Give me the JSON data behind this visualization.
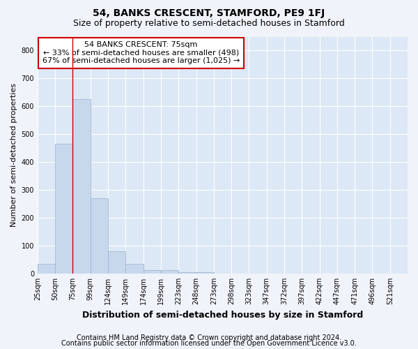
{
  "title": "54, BANKS CRESCENT, STAMFORD, PE9 1FJ",
  "subtitle": "Size of property relative to semi-detached houses in Stamford",
  "xlabel": "Distribution of semi-detached houses by size in Stamford",
  "ylabel": "Number of semi-detached properties",
  "categories": [
    "25sqm",
    "50sqm",
    "75sqm",
    "99sqm",
    "124sqm",
    "149sqm",
    "174sqm",
    "199sqm",
    "223sqm",
    "248sqm",
    "273sqm",
    "298sqm",
    "323sqm",
    "347sqm",
    "372sqm",
    "397sqm",
    "422sqm",
    "447sqm",
    "471sqm",
    "496sqm",
    "521sqm"
  ],
  "values": [
    35,
    465,
    625,
    270,
    80,
    35,
    13,
    12,
    5,
    5,
    0,
    0,
    0,
    0,
    0,
    0,
    0,
    0,
    0,
    0,
    0
  ],
  "bar_color": "#c8d8ec",
  "bar_edge_color": "#9ab0cc",
  "vline_color": "#cc0000",
  "annotation_text": "54 BANKS CRESCENT: 75sqm\n← 33% of semi-detached houses are smaller (498)\n67% of semi-detached houses are larger (1,025) →",
  "annotation_box_color": "#ffffff",
  "annotation_border_color": "#cc0000",
  "ylim": [
    0,
    850
  ],
  "yticks": [
    0,
    100,
    200,
    300,
    400,
    500,
    600,
    700,
    800
  ],
  "footer_line1": "Contains HM Land Registry data © Crown copyright and database right 2024.",
  "footer_line2": "Contains public sector information licensed under the Open Government Licence v3.0.",
  "fig_bg_color": "#f0f4fa",
  "plot_bg_color": "#dce8f5",
  "grid_color": "#ffffff",
  "title_fontsize": 10,
  "subtitle_fontsize": 9,
  "xlabel_fontsize": 9,
  "ylabel_fontsize": 8,
  "tick_fontsize": 7,
  "annotation_fontsize": 8,
  "footer_fontsize": 7
}
